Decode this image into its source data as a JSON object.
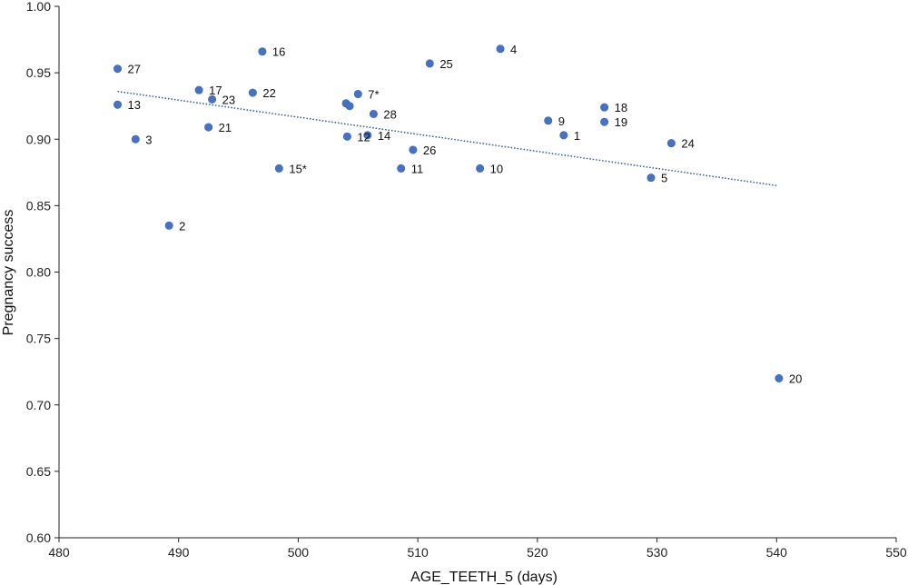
{
  "chart_data": {
    "type": "scatter",
    "xlabel": "AGE_TEETH_5 (days)",
    "ylabel": "Pregnancy success",
    "xlim": [
      480,
      550
    ],
    "ylim": [
      0.6,
      1.0
    ],
    "x_ticks": [
      480,
      490,
      500,
      510,
      520,
      530,
      540,
      550
    ],
    "y_ticks": [
      0.6,
      0.65,
      0.7,
      0.75,
      0.8,
      0.85,
      0.9,
      0.95,
      1.0
    ],
    "x_tick_labels": [
      "480",
      "490",
      "500",
      "510",
      "520",
      "530",
      "540",
      "550"
    ],
    "y_tick_labels": [
      "0.60",
      "0.65",
      "0.70",
      "0.75",
      "0.80",
      "0.85",
      "0.90",
      "0.95",
      "1.00"
    ],
    "grid": false,
    "marker_color": "#4472c4",
    "trendline": {
      "style": "dotted",
      "color": "#2e5c8a",
      "x": [
        484.9,
        540.1
      ],
      "y": [
        0.936,
        0.865
      ]
    },
    "points": [
      {
        "label": "27",
        "x": 484.9,
        "y": 0.953
      },
      {
        "label": "13",
        "x": 484.9,
        "y": 0.926
      },
      {
        "label": "3",
        "x": 486.4,
        "y": 0.9
      },
      {
        "label": "2",
        "x": 489.2,
        "y": 0.835
      },
      {
        "label": "17",
        "x": 491.7,
        "y": 0.937
      },
      {
        "label": "23",
        "x": 492.8,
        "y": 0.93
      },
      {
        "label": "21",
        "x": 492.5,
        "y": 0.909
      },
      {
        "label": "22",
        "x": 496.2,
        "y": 0.935
      },
      {
        "label": "16",
        "x": 497.0,
        "y": 0.966
      },
      {
        "label": "15*",
        "x": 498.4,
        "y": 0.878
      },
      {
        "label": "",
        "x": 504.0,
        "y": 0.927
      },
      {
        "label": "",
        "x": 504.3,
        "y": 0.925
      },
      {
        "label": "7*",
        "x": 505.0,
        "y": 0.934
      },
      {
        "label": "12",
        "x": 504.1,
        "y": 0.902
      },
      {
        "label": "14",
        "x": 505.8,
        "y": 0.903
      },
      {
        "label": "28",
        "x": 506.3,
        "y": 0.919
      },
      {
        "label": "11",
        "x": 508.6,
        "y": 0.878
      },
      {
        "label": "26",
        "x": 509.6,
        "y": 0.892
      },
      {
        "label": "25",
        "x": 511.0,
        "y": 0.957
      },
      {
        "label": "10",
        "x": 515.2,
        "y": 0.878
      },
      {
        "label": "4",
        "x": 516.9,
        "y": 0.968
      },
      {
        "label": "9",
        "x": 520.9,
        "y": 0.914
      },
      {
        "label": "1",
        "x": 522.2,
        "y": 0.903
      },
      {
        "label": "18",
        "x": 525.6,
        "y": 0.924
      },
      {
        "label": "19",
        "x": 525.6,
        "y": 0.913
      },
      {
        "label": "5",
        "x": 529.5,
        "y": 0.871
      },
      {
        "label": "24",
        "x": 531.2,
        "y": 0.897
      },
      {
        "label": "20",
        "x": 540.2,
        "y": 0.72
      }
    ]
  }
}
